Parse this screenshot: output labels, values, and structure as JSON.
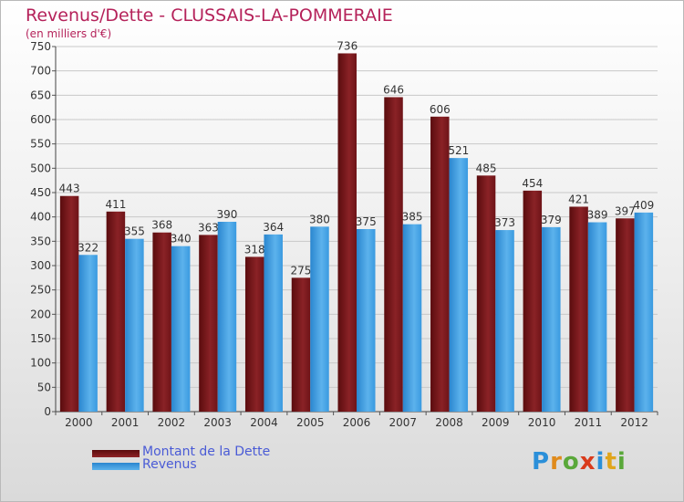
{
  "chart_data": {
    "type": "bar",
    "title": "Revenus/Dette - CLUSSAIS-LA-POMMERAIE",
    "subtitle": "(en milliers d'€)",
    "categories": [
      "2000",
      "2001",
      "2002",
      "2003",
      "2004",
      "2005",
      "2006",
      "2007",
      "2008",
      "2009",
      "2010",
      "2011",
      "2012"
    ],
    "series": [
      {
        "name": "Montant de la Dette",
        "color": "#7a1416",
        "values": [
          443,
          411,
          368,
          363,
          318,
          275,
          736,
          646,
          606,
          485,
          454,
          421,
          397
        ]
      },
      {
        "name": "Revenus",
        "color": "#3a98dc",
        "values": [
          322,
          355,
          340,
          390,
          364,
          380,
          375,
          385,
          521,
          373,
          379,
          389,
          409
        ]
      }
    ],
    "ylim": [
      0,
      750
    ],
    "yticks": [
      0,
      50,
      100,
      150,
      200,
      250,
      300,
      350,
      400,
      450,
      500,
      550,
      600,
      650,
      700,
      750
    ],
    "grid": true,
    "xlabel": "",
    "ylabel": ""
  },
  "legend": {
    "debt_label": "Montant de la Dette",
    "revenue_label": "Revenus"
  },
  "logo": {
    "letters": [
      "P",
      "r",
      "o",
      "x",
      "i",
      "t",
      "i"
    ],
    "colors": [
      "#2b8fd9",
      "#e08b1c",
      "#5aa83a",
      "#d93b1c",
      "#2b8fd9",
      "#e0a51c",
      "#5aa83a"
    ]
  }
}
